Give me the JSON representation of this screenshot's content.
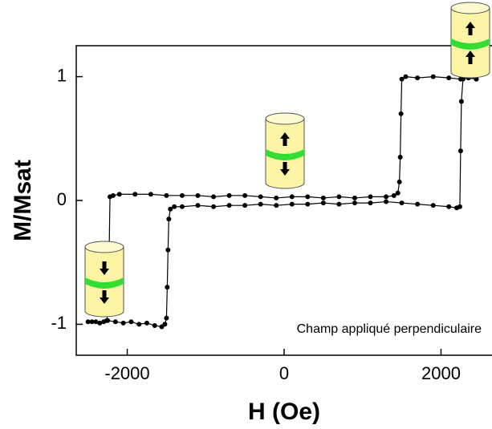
{
  "chart_data": {
    "type": "line",
    "x_label": "H (Oe)",
    "y_label": "M/Msat",
    "annotation": "Champ appliqué perpendiculaire",
    "xlim": [
      -2650,
      2650
    ],
    "ylim": [
      -1.25,
      1.25
    ],
    "xticks": [
      -2000,
      0,
      2000
    ],
    "yticks": [
      -1,
      0,
      1
    ],
    "series": [
      {
        "color": "#000000",
        "x": [
          -2450,
          -2350,
          -2250,
          -2150,
          -2050,
          -1950,
          -1850,
          -1750,
          -1650,
          -1560,
          -1520,
          -1500,
          -1490,
          -1480,
          -1470,
          -1450,
          -1400,
          -1300,
          -1100,
          -900,
          -700,
          -500,
          -300,
          -100,
          100,
          300,
          500,
          700,
          900,
          1100,
          1300,
          1500,
          1700,
          1900,
          2100,
          2200,
          2240,
          2250,
          2260,
          2280,
          2350,
          2450
        ],
        "values": [
          -0.98,
          -0.99,
          -0.97,
          -0.98,
          -0.99,
          -0.98,
          -1.0,
          -0.99,
          -1.01,
          -1.02,
          -1.0,
          -0.95,
          -0.7,
          -0.4,
          -0.15,
          -0.07,
          -0.05,
          -0.05,
          -0.04,
          -0.05,
          -0.04,
          -0.04,
          -0.03,
          -0.04,
          -0.03,
          -0.03,
          -0.02,
          -0.03,
          -0.02,
          -0.02,
          -0.01,
          -0.02,
          -0.03,
          -0.04,
          -0.05,
          -0.06,
          -0.05,
          0.4,
          0.8,
          0.98,
          0.99,
          0.98
        ]
      },
      {
        "color": "#000000",
        "x": [
          2450,
          2350,
          2250,
          2100,
          1900,
          1700,
          1550,
          1500,
          1490,
          1480,
          1470,
          1450,
          1400,
          1300,
          1100,
          900,
          700,
          500,
          300,
          100,
          -100,
          -300,
          -500,
          -700,
          -900,
          -1100,
          -1300,
          -1500,
          -1700,
          -1900,
          -2100,
          -2180,
          -2220,
          -2230,
          -2240,
          -2260,
          -2300,
          -2400,
          -2500
        ],
        "values": [
          0.98,
          0.99,
          0.98,
          0.99,
          1.0,
          0.99,
          1.0,
          0.98,
          0.7,
          0.35,
          0.15,
          0.06,
          0.04,
          0.03,
          0.03,
          0.02,
          0.03,
          0.02,
          0.03,
          0.03,
          0.02,
          0.03,
          0.04,
          0.04,
          0.03,
          0.04,
          0.04,
          0.04,
          0.05,
          0.05,
          0.05,
          0.04,
          0.03,
          -0.4,
          -0.85,
          -0.97,
          -0.98,
          -0.98,
          -0.98
        ]
      }
    ]
  }
}
